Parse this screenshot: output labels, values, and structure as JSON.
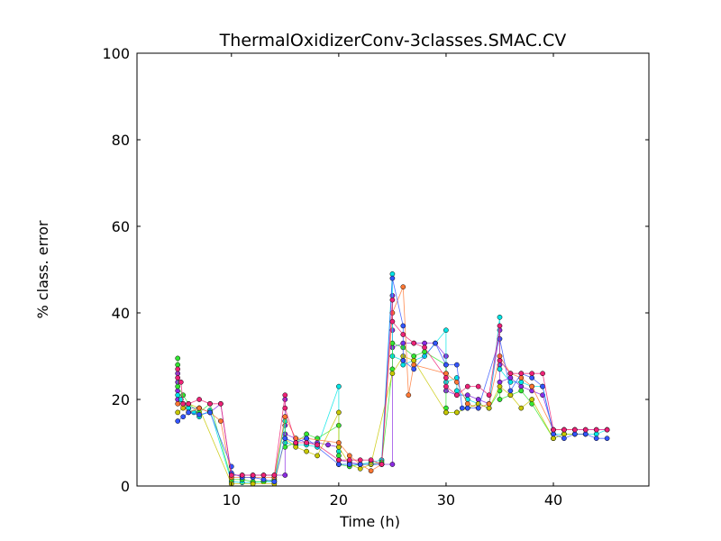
{
  "chart_data": {
    "type": "scatter",
    "title": "ThermalOxidizerConv-3classes.SMAC.CV",
    "xlabel": "Time (h)",
    "ylabel": "% class. error",
    "xlim": [
      1.2,
      48.9
    ],
    "ylim": [
      0,
      100
    ],
    "xticks": [
      10,
      20,
      30,
      40
    ],
    "yticks": [
      0,
      20,
      40,
      60,
      80,
      100
    ],
    "grid": false,
    "legend": "none",
    "series": [
      {
        "color": "#8b2be2",
        "points": [
          [
            5,
            26
          ],
          [
            5,
            24
          ],
          [
            5,
            22
          ],
          [
            5,
            20
          ],
          [
            5.5,
            19
          ],
          [
            6,
            18
          ],
          [
            7,
            18
          ],
          [
            8,
            17
          ],
          [
            9,
            19
          ],
          [
            10,
            2.5
          ],
          [
            11,
            2.5
          ],
          [
            12,
            2.5
          ],
          [
            13,
            2.5
          ],
          [
            14,
            2.5
          ],
          [
            15,
            2.5
          ],
          [
            15,
            20
          ],
          [
            15,
            14
          ],
          [
            15,
            12
          ],
          [
            16,
            11
          ],
          [
            17,
            10
          ],
          [
            18,
            10
          ],
          [
            19,
            9.5
          ],
          [
            20,
            9
          ],
          [
            20,
            6
          ],
          [
            21,
            5.5
          ],
          [
            22,
            5
          ],
          [
            23,
            5
          ],
          [
            24,
            5
          ],
          [
            25,
            5
          ],
          [
            25,
            44
          ],
          [
            25,
            36
          ],
          [
            25,
            32
          ],
          [
            26,
            33
          ],
          [
            27,
            33
          ],
          [
            28,
            33
          ],
          [
            29,
            33
          ],
          [
            30,
            30
          ],
          [
            30,
            26
          ],
          [
            30,
            22
          ],
          [
            31,
            21
          ],
          [
            32,
            21
          ],
          [
            33,
            20
          ],
          [
            34,
            19
          ],
          [
            35,
            36
          ],
          [
            35,
            28
          ],
          [
            35,
            24
          ],
          [
            36,
            25
          ],
          [
            37,
            23
          ],
          [
            38,
            22
          ],
          [
            39,
            21
          ],
          [
            40,
            13
          ],
          [
            41,
            13
          ],
          [
            42,
            13
          ],
          [
            43,
            13
          ],
          [
            44,
            13
          ],
          [
            45,
            13
          ]
        ]
      },
      {
        "color": "#00e5e5",
        "points": [
          [
            5,
            21
          ],
          [
            5.3,
            20
          ],
          [
            6,
            18
          ],
          [
            6.5,
            17
          ],
          [
            7,
            16
          ],
          [
            8,
            17.5
          ],
          [
            10,
            1
          ],
          [
            11,
            0.8
          ],
          [
            12,
            0.8
          ],
          [
            13,
            1
          ],
          [
            14,
            1
          ],
          [
            15,
            15
          ],
          [
            15,
            10
          ],
          [
            16,
            9.5
          ],
          [
            17,
            9.5
          ],
          [
            18,
            9
          ],
          [
            20,
            23
          ],
          [
            20,
            8
          ],
          [
            20,
            5
          ],
          [
            21,
            5
          ],
          [
            22,
            5
          ],
          [
            23,
            5.5
          ],
          [
            24,
            6
          ],
          [
            25,
            49
          ],
          [
            25,
            30
          ],
          [
            26,
            29
          ],
          [
            26,
            28
          ],
          [
            27,
            29
          ],
          [
            28,
            30
          ],
          [
            30,
            36
          ],
          [
            30,
            24
          ],
          [
            31,
            25
          ],
          [
            31,
            22
          ],
          [
            32,
            20
          ],
          [
            33,
            19
          ],
          [
            34,
            18
          ],
          [
            35,
            39
          ],
          [
            35,
            27
          ],
          [
            36,
            24
          ],
          [
            37,
            24
          ],
          [
            38,
            23
          ],
          [
            39,
            23
          ],
          [
            40,
            12
          ],
          [
            41,
            12
          ],
          [
            42,
            12
          ],
          [
            43,
            12
          ],
          [
            44,
            12
          ],
          [
            45,
            13
          ]
        ]
      },
      {
        "color": "#33e633",
        "points": [
          [
            5,
            29.5
          ],
          [
            5,
            28
          ],
          [
            5,
            23
          ],
          [
            5.5,
            21
          ],
          [
            6,
            19
          ],
          [
            7,
            17
          ],
          [
            8,
            19
          ],
          [
            10,
            1.5
          ],
          [
            11,
            1.5
          ],
          [
            12,
            1
          ],
          [
            13,
            1
          ],
          [
            14,
            1.5
          ],
          [
            15,
            16
          ],
          [
            15,
            9
          ],
          [
            16,
            10
          ],
          [
            17,
            12
          ],
          [
            18,
            11
          ],
          [
            20,
            14
          ],
          [
            20,
            7
          ],
          [
            20,
            5
          ],
          [
            21,
            4.5
          ],
          [
            22,
            5
          ],
          [
            23,
            5
          ],
          [
            24,
            5.5
          ],
          [
            25,
            27
          ],
          [
            25,
            33
          ],
          [
            26,
            32
          ],
          [
            27,
            30
          ],
          [
            28,
            31
          ],
          [
            30,
            28
          ],
          [
            30,
            18
          ],
          [
            30,
            17
          ],
          [
            31,
            17
          ],
          [
            32,
            18
          ],
          [
            33,
            19
          ],
          [
            34,
            18
          ],
          [
            35,
            22
          ],
          [
            35,
            20
          ],
          [
            36,
            21
          ],
          [
            37,
            22
          ],
          [
            38,
            19
          ],
          [
            40,
            11
          ],
          [
            41,
            12
          ],
          [
            42,
            12
          ],
          [
            43,
            12
          ]
        ]
      },
      {
        "color": "#c8c800",
        "points": [
          [
            5,
            17
          ],
          [
            5.5,
            18
          ],
          [
            6,
            19
          ],
          [
            7,
            18
          ],
          [
            10,
            0.5
          ],
          [
            12,
            0.5
          ],
          [
            14,
            0.5
          ],
          [
            15,
            11
          ],
          [
            16,
            9
          ],
          [
            17,
            8
          ],
          [
            18,
            7
          ],
          [
            20,
            17
          ],
          [
            20,
            9
          ],
          [
            21,
            5
          ],
          [
            22,
            4
          ],
          [
            23,
            5
          ],
          [
            25,
            26
          ],
          [
            26,
            30
          ],
          [
            27,
            29
          ],
          [
            30,
            17
          ],
          [
            31,
            17
          ],
          [
            32,
            18
          ],
          [
            33,
            19
          ],
          [
            34,
            18
          ],
          [
            35,
            23
          ],
          [
            36,
            21
          ],
          [
            37,
            18
          ],
          [
            38,
            20
          ],
          [
            40,
            11
          ],
          [
            41,
            12
          ],
          [
            42,
            12
          ],
          [
            43,
            12
          ]
        ]
      },
      {
        "color": "#ff7733",
        "points": [
          [
            5,
            19
          ],
          [
            6,
            17
          ],
          [
            7,
            18
          ],
          [
            8,
            17
          ],
          [
            9,
            15
          ],
          [
            10,
            2
          ],
          [
            12,
            2
          ],
          [
            14,
            2
          ],
          [
            15,
            16
          ],
          [
            16,
            11
          ],
          [
            17,
            11
          ],
          [
            20,
            10
          ],
          [
            21,
            7
          ],
          [
            22,
            5
          ],
          [
            23,
            3.5
          ],
          [
            24,
            5
          ],
          [
            25,
            40
          ],
          [
            26,
            46
          ],
          [
            26.5,
            21
          ],
          [
            27,
            28
          ],
          [
            30,
            26
          ],
          [
            31,
            24
          ],
          [
            32,
            19
          ],
          [
            33,
            18
          ],
          [
            34,
            19
          ],
          [
            35,
            30
          ],
          [
            36,
            26
          ],
          [
            37,
            25
          ],
          [
            38,
            23
          ],
          [
            40,
            13
          ],
          [
            41,
            13
          ],
          [
            42,
            13
          ]
        ]
      },
      {
        "color": "#3355ff",
        "points": [
          [
            5,
            15
          ],
          [
            5.5,
            16
          ],
          [
            6,
            17
          ],
          [
            7,
            16.5
          ],
          [
            8,
            17
          ],
          [
            10,
            4.5
          ],
          [
            10,
            3
          ],
          [
            11,
            2
          ],
          [
            12,
            2
          ],
          [
            13,
            1.5
          ],
          [
            14,
            1
          ],
          [
            15,
            11
          ],
          [
            16,
            10
          ],
          [
            17,
            11
          ],
          [
            20,
            5
          ],
          [
            21,
            5
          ],
          [
            22,
            5
          ],
          [
            24,
            5
          ],
          [
            25,
            48
          ],
          [
            26,
            37
          ],
          [
            26,
            29
          ],
          [
            27,
            27
          ],
          [
            29,
            33
          ],
          [
            30,
            28
          ],
          [
            31,
            28
          ],
          [
            31.5,
            18
          ],
          [
            32,
            18
          ],
          [
            33,
            18
          ],
          [
            35,
            34
          ],
          [
            36,
            22
          ],
          [
            37,
            26
          ],
          [
            38,
            25
          ],
          [
            39,
            23
          ],
          [
            40,
            12
          ],
          [
            41,
            11
          ],
          [
            42,
            12
          ],
          [
            43,
            12
          ],
          [
            44,
            11
          ],
          [
            45,
            11
          ]
        ]
      },
      {
        "color": "#ee2277",
        "points": [
          [
            5,
            27
          ],
          [
            5,
            25
          ],
          [
            5.3,
            24
          ],
          [
            5.5,
            19
          ],
          [
            6,
            19
          ],
          [
            7,
            20
          ],
          [
            8,
            19
          ],
          [
            9,
            19
          ],
          [
            10,
            2.5
          ],
          [
            11,
            2.5
          ],
          [
            12,
            2.5
          ],
          [
            13,
            2.5
          ],
          [
            14,
            2.5
          ],
          [
            15,
            21
          ],
          [
            15,
            18
          ],
          [
            16,
            10
          ],
          [
            17,
            10
          ],
          [
            18,
            9.5
          ],
          [
            20,
            6
          ],
          [
            21,
            6
          ],
          [
            22,
            6
          ],
          [
            23,
            6
          ],
          [
            24,
            5
          ],
          [
            25,
            43
          ],
          [
            25,
            38
          ],
          [
            26,
            35
          ],
          [
            27,
            33
          ],
          [
            28,
            32
          ],
          [
            30,
            25
          ],
          [
            30,
            23
          ],
          [
            31,
            21
          ],
          [
            32,
            23
          ],
          [
            33,
            23
          ],
          [
            34,
            21
          ],
          [
            35,
            37
          ],
          [
            35,
            29
          ],
          [
            36,
            26
          ],
          [
            37,
            26
          ],
          [
            38,
            26
          ],
          [
            39,
            26
          ],
          [
            40,
            13
          ],
          [
            41,
            13
          ],
          [
            42,
            13
          ],
          [
            43,
            13
          ],
          [
            44,
            13
          ],
          [
            45,
            13
          ]
        ]
      }
    ]
  }
}
